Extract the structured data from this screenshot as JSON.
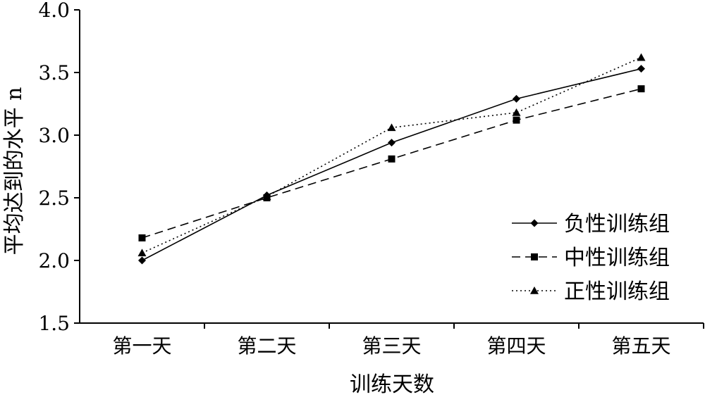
{
  "chart_data": {
    "type": "line",
    "categories": [
      "第一天",
      "第二天",
      "第三天",
      "第四天",
      "第五天"
    ],
    "xlabel": "训练天数",
    "ylabel": "平均达到的水平 n",
    "ylim": [
      1.5,
      4.0
    ],
    "yticks": [
      "1.5",
      "2.0",
      "2.5",
      "3.0",
      "3.5",
      "4.0"
    ],
    "grid": false,
    "legend_position": "bottom-right",
    "series": [
      {
        "name": "负性训练组",
        "values": [
          2.0,
          2.52,
          2.94,
          3.29,
          3.53
        ],
        "line_style": "solid",
        "marker": "diamond",
        "color": "#000000"
      },
      {
        "name": "中性训练组",
        "values": [
          2.18,
          2.5,
          2.81,
          3.12,
          3.37
        ],
        "line_style": "dashed",
        "marker": "square",
        "color": "#000000"
      },
      {
        "name": "正性训练组",
        "values": [
          2.06,
          2.51,
          3.06,
          3.18,
          3.62
        ],
        "line_style": "dotted",
        "marker": "triangle",
        "color": "#000000"
      }
    ]
  }
}
